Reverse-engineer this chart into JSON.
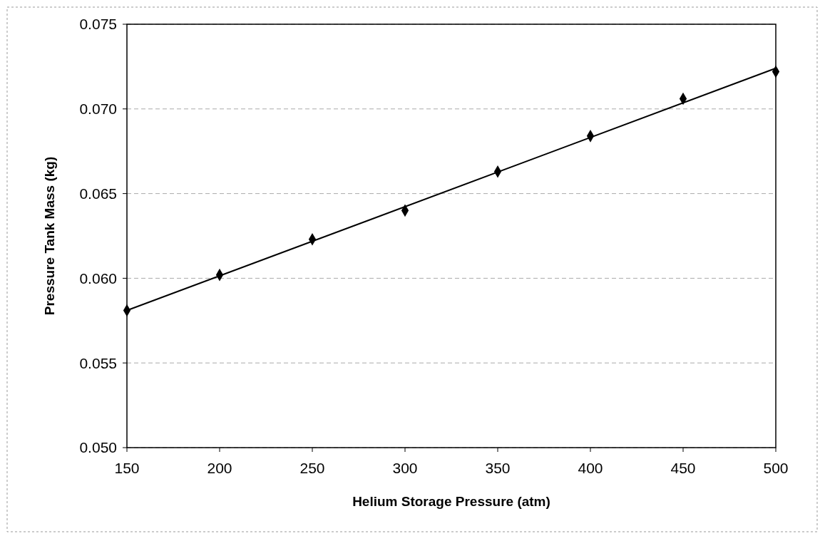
{
  "chart_data": {
    "type": "scatter",
    "xlabel": "Helium Storage Pressure (atm)",
    "ylabel": "Pressure Tank Mass (kg)",
    "x": [
      150,
      200,
      250,
      300,
      350,
      400,
      450,
      500
    ],
    "series": [
      {
        "color": "#000000",
        "marker": "diamond",
        "values": [
          0.0581,
          0.0602,
          0.0623,
          0.064,
          0.0663,
          0.0684,
          0.0706,
          0.0722
        ]
      },
      {
        "type": "line",
        "color": "#000000",
        "marker": "none",
        "line_style": "solid",
        "x": [
          150,
          500
        ],
        "values": [
          0.0581,
          0.0724
        ]
      }
    ],
    "xlim": [
      150,
      500
    ],
    "xticks": [
      150,
      200,
      250,
      300,
      350,
      400,
      450,
      500
    ],
    "ylim": [
      0.05,
      0.075
    ],
    "yticks": [
      {
        "value": 0.05,
        "label": "0.050"
      },
      {
        "value": 0.055,
        "label": "0.055"
      },
      {
        "value": 0.06,
        "label": "0.060"
      },
      {
        "value": 0.065,
        "label": "0.065"
      },
      {
        "value": 0.07,
        "label": "0.070"
      },
      {
        "value": 0.075,
        "label": "0.075"
      }
    ],
    "grid": "y"
  }
}
